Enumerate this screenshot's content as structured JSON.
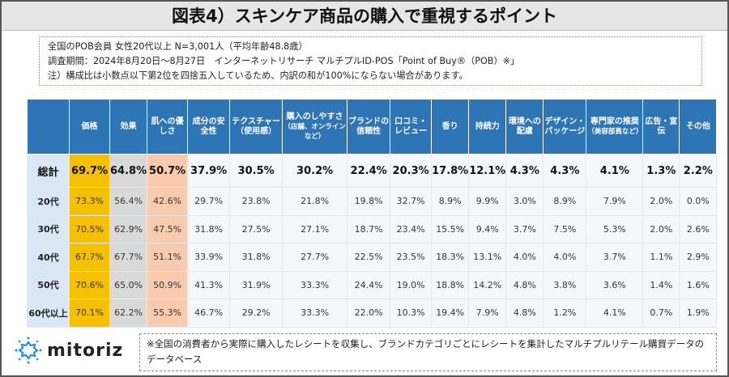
{
  "title": "図表4）スキンケア商品の購入で重視するポイント",
  "info": {
    "line1": "全国のPOB会員 女性20代以上 N=3,001人（平均年齢48.8歳）",
    "line2": "調査期間：2024年8月20日～8月27日　インターネットリサーチ マルチプルID-POS「Point of Buy®（POB）※」",
    "line3": "注）構成比は小数点以下第2位を四捨五入しているため、内訳の和が100%にならない場合があります。"
  },
  "table": {
    "columns": [
      {
        "label": "価格"
      },
      {
        "label": "効果"
      },
      {
        "label": "肌への優しさ"
      },
      {
        "label": "成分の安全性"
      },
      {
        "label": "テクスチャー（使用感）"
      },
      {
        "label": "購入のしやすさ",
        "sub": "（店舗、オンラインなど）"
      },
      {
        "label": "ブランドの信頼性"
      },
      {
        "label": "口コミ・レビュー"
      },
      {
        "label": "香り"
      },
      {
        "label": "持続力"
      },
      {
        "label": "環境への配慮"
      },
      {
        "label": "デザイン・パッケージ"
      },
      {
        "label": "専門家の推奨",
        "sub": "（美容部員など）"
      },
      {
        "label": "広告・宣伝"
      },
      {
        "label": "その他"
      }
    ],
    "rows": [
      {
        "label": "総計",
        "values": [
          "69.7%",
          "64.8%",
          "50.7%",
          "37.9%",
          "30.5%",
          "30.2%",
          "22.4%",
          "20.3%",
          "17.8%",
          "12.1%",
          "4.3%",
          "4.3%",
          "4.1%",
          "1.3%",
          "2.2%"
        ]
      },
      {
        "label": "20代",
        "values": [
          "73.3%",
          "56.4%",
          "42.6%",
          "29.7%",
          "23.8%",
          "21.8%",
          "19.8%",
          "32.7%",
          "8.9%",
          "9.9%",
          "3.0%",
          "8.9%",
          "7.9%",
          "2.0%",
          "0.0%"
        ]
      },
      {
        "label": "30代",
        "values": [
          "70.5%",
          "62.9%",
          "47.5%",
          "31.8%",
          "27.5%",
          "27.1%",
          "18.7%",
          "23.4%",
          "15.5%",
          "9.4%",
          "3.7%",
          "7.5%",
          "5.3%",
          "2.0%",
          "2.6%"
        ]
      },
      {
        "label": "40代",
        "values": [
          "67.7%",
          "67.7%",
          "51.1%",
          "33.9%",
          "31.8%",
          "27.7%",
          "22.5%",
          "23.5%",
          "18.3%",
          "13.1%",
          "4.0%",
          "4.0%",
          "3.7%",
          "1.1%",
          "2.9%"
        ]
      },
      {
        "label": "50代",
        "values": [
          "70.6%",
          "65.0%",
          "50.9%",
          "41.3%",
          "31.9%",
          "33.3%",
          "24.4%",
          "19.0%",
          "18.8%",
          "14.2%",
          "4.8%",
          "3.8%",
          "3.6%",
          "1.4%",
          "1.6%"
        ]
      },
      {
        "label": "60代以上",
        "values": [
          "70.1%",
          "62.2%",
          "55.3%",
          "46.7%",
          "29.2%",
          "33.3%",
          "22.0%",
          "10.3%",
          "19.4%",
          "7.9%",
          "4.8%",
          "1.2%",
          "4.1%",
          "0.7%",
          "1.9%"
        ]
      }
    ]
  },
  "logo": {
    "text": "mitoriz",
    "icon": "sun-burst-icon"
  },
  "note": "※全国の消費者から実際に購入したレシートを収集し、ブランドカテゴリごとにレシートを集計したマルチプルリテール購買データのデータベース",
  "colors": {
    "header": "#2e75b6",
    "top1": "#f5c000",
    "top2": "#d9d9d9",
    "top3": "#f8cbad"
  }
}
